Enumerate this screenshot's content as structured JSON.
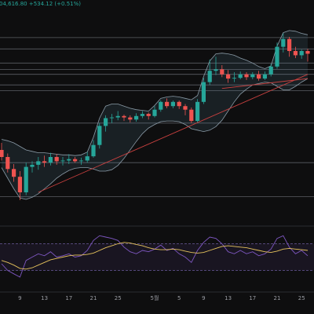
{
  "chart_data": {
    "type": "candlestick",
    "header_text": "04,616.80 +534.12 (+0.51%)",
    "categories": [
      null,
      null,
      null,
      "9",
      null,
      null,
      null,
      "13",
      null,
      null,
      null,
      "17",
      null,
      null,
      null,
      "21",
      null,
      null,
      null,
      "25",
      null,
      null,
      null,
      null,
      null,
      "5월",
      null,
      null,
      null,
      "5",
      null,
      null,
      null,
      "9",
      null,
      null,
      null,
      "13",
      null,
      null,
      null,
      "17",
      null,
      null,
      null,
      "21",
      null,
      null,
      null,
      "25",
      null
    ],
    "open": [
      91000,
      90000,
      88300,
      87200,
      85000,
      88600,
      88900,
      89400,
      89200,
      90000,
      89400,
      89500,
      89700,
      89400,
      89500,
      90100,
      91700,
      94400,
      95500,
      95600,
      95800,
      95600,
      95300,
      95800,
      96100,
      95800,
      96700,
      97800,
      97200,
      97800,
      97200,
      96700,
      95100,
      97800,
      100600,
      102200,
      102400,
      101700,
      101100,
      101200,
      101700,
      101300,
      101700,
      101100,
      101700,
      102800,
      105600,
      106700,
      105000,
      104400,
      105000
    ],
    "high": [
      92000,
      90500,
      89000,
      88000,
      89200,
      89400,
      90000,
      90200,
      90600,
      90400,
      90000,
      90400,
      90000,
      89900,
      90700,
      92400,
      94800,
      95900,
      96100,
      96500,
      96000,
      95900,
      96200,
      96500,
      96300,
      97200,
      98000,
      98300,
      98000,
      98000,
      97500,
      97000,
      98200,
      101200,
      103800,
      104200,
      103000,
      102300,
      102000,
      102100,
      102000,
      102000,
      102200,
      102100,
      103200,
      106200,
      107500,
      107000,
      105600,
      105200,
      105300
    ],
    "low": [
      89500,
      87800,
      86500,
      83900,
      84600,
      87800,
      88200,
      88600,
      88800,
      88900,
      88800,
      89000,
      89200,
      88900,
      89200,
      89900,
      91200,
      93600,
      94800,
      95200,
      95100,
      94900,
      95000,
      95500,
      95300,
      95600,
      96400,
      96900,
      96900,
      96800,
      95900,
      94800,
      94900,
      97500,
      100200,
      101600,
      101300,
      100500,
      100600,
      101000,
      100900,
      101000,
      100800,
      100900,
      101400,
      102500,
      104800,
      104200,
      104000,
      103900,
      103500
    ],
    "close": [
      90000,
      88300,
      87200,
      85000,
      88600,
      88900,
      89400,
      89200,
      90000,
      89400,
      89500,
      89700,
      89400,
      89500,
      90100,
      91700,
      94400,
      95500,
      95600,
      95800,
      95600,
      95300,
      95800,
      96100,
      95800,
      96700,
      97800,
      97200,
      97800,
      97200,
      96700,
      95100,
      97800,
      100600,
      102200,
      102400,
      101700,
      101100,
      101200,
      101700,
      101300,
      101700,
      101100,
      101700,
      102800,
      105600,
      106700,
      105000,
      104400,
      105000,
      104616.8
    ],
    "up_color": "#26a69a",
    "down_color": "#ef5350",
    "band_upper": [
      92500,
      92300,
      92000,
      91500,
      91000,
      90800,
      90600,
      90600,
      90500,
      90400,
      90300,
      90300,
      90200,
      90300,
      90700,
      92800,
      95500,
      97200,
      97500,
      97500,
      97200,
      96900,
      96700,
      96600,
      96500,
      97300,
      98300,
      98500,
      98600,
      98500,
      98300,
      98100,
      98700,
      101400,
      103600,
      104600,
      104700,
      104600,
      104400,
      104000,
      103700,
      103300,
      102800,
      102500,
      102900,
      105700,
      107600,
      107900,
      107800,
      107500,
      107300
    ],
    "band_lower": [
      88500,
      87000,
      85500,
      84200,
      84000,
      84300,
      84800,
      85500,
      86200,
      87000,
      87600,
      88100,
      88400,
      88500,
      88500,
      88300,
      88000,
      88000,
      88200,
      88800,
      89800,
      91000,
      92200,
      93300,
      94100,
      94600,
      95000,
      95100,
      95100,
      95000,
      94600,
      94000,
      93800,
      93600,
      93800,
      94300,
      95200,
      96500,
      97800,
      98900,
      99600,
      100200,
      100400,
      100600,
      100500,
      100000,
      99500,
      99500,
      100000,
      100600,
      101100
    ],
    "band_color": "#8a9aa6",
    "levels": [
      106900,
      105300,
      103300,
      102400,
      101700,
      100200,
      99400,
      94800,
      89200,
      84400
    ],
    "level_color": "#5a5d63",
    "trendlines": [
      [
        [
          6,
          85000
        ],
        [
          50,
          101700
        ]
      ],
      [
        [
          36,
          99700
        ],
        [
          50,
          101100
        ]
      ]
    ],
    "trendline_color": "#c9403f",
    "ylim": [
      80000,
      110000
    ],
    "rsi": [
      40,
      30,
      25,
      20,
      45,
      50,
      55,
      52,
      58,
      50,
      52,
      55,
      50,
      52,
      60,
      75,
      82,
      80,
      78,
      75,
      65,
      58,
      55,
      60,
      58,
      62,
      68,
      60,
      63,
      55,
      50,
      42,
      60,
      72,
      80,
      78,
      70,
      58,
      55,
      60,
      55,
      58,
      52,
      55,
      62,
      78,
      82,
      65,
      55,
      60,
      52
    ],
    "rsi_ma": [
      45,
      42,
      38,
      33,
      32,
      34,
      38,
      42,
      46,
      48,
      50,
      52,
      53,
      53,
      54,
      56,
      60,
      64,
      67,
      70,
      72,
      71,
      69,
      67,
      64,
      62,
      61,
      61,
      62,
      61,
      59,
      57,
      56,
      57,
      60,
      63,
      66,
      67,
      66,
      65,
      64,
      62,
      60,
      58,
      57,
      59,
      62,
      63,
      62,
      61,
      60
    ],
    "rsi_color": "#7e57c2",
    "rsi_ma_color": "#e6c35c",
    "rsi_levels": [
      70,
      30
    ],
    "rsi_ylim": [
      0,
      100
    ]
  }
}
